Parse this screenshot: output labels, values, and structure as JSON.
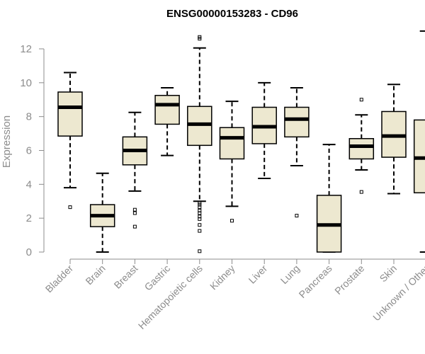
{
  "chart_data": {
    "type": "boxplot",
    "title": "ENSG00000153283 - CD96",
    "xlabel": "",
    "ylabel": "Expression",
    "ylim": [
      0,
      13
    ],
    "yticks": [
      0,
      2,
      4,
      6,
      8,
      10,
      12
    ],
    "grid": false,
    "colors": {
      "box_fill": "#ede8d0",
      "median": "#000000",
      "axis": "#8c8c8c"
    },
    "categories": [
      "Bladder",
      "Brain",
      "Breast",
      "Gastric",
      "Hematopoietic cells",
      "Kidney",
      "Liver",
      "Lung",
      "Pancreas",
      "Prostate",
      "Skin",
      "Unknown / Other"
    ],
    "boxes": [
      {
        "min": 3.8,
        "q1": 6.85,
        "median": 8.55,
        "q3": 9.45,
        "max": 10.6,
        "outliers": [
          2.65
        ]
      },
      {
        "min": 0.0,
        "q1": 1.5,
        "median": 2.15,
        "q3": 2.8,
        "max": 4.65,
        "outliers": []
      },
      {
        "min": 3.6,
        "q1": 5.15,
        "median": 6.0,
        "q3": 6.8,
        "max": 8.25,
        "outliers": [
          1.5,
          2.3,
          2.5
        ]
      },
      {
        "min": 5.7,
        "q1": 7.55,
        "median": 8.7,
        "q3": 9.25,
        "max": 9.7,
        "outliers": []
      },
      {
        "min": 3.0,
        "q1": 6.3,
        "median": 7.55,
        "q3": 8.6,
        "max": 12.05,
        "outliers": [
          12.7,
          12.6,
          2.9,
          2.8,
          2.65,
          2.45,
          2.3,
          2.1,
          1.95,
          1.6,
          1.25,
          0.05
        ]
      },
      {
        "min": 2.7,
        "q1": 5.5,
        "median": 6.75,
        "q3": 7.35,
        "max": 8.9,
        "outliers": [
          1.85
        ]
      },
      {
        "min": 4.35,
        "q1": 6.4,
        "median": 7.4,
        "q3": 8.55,
        "max": 10.0,
        "outliers": []
      },
      {
        "min": 5.1,
        "q1": 6.8,
        "median": 7.85,
        "q3": 8.55,
        "max": 9.7,
        "outliers": [
          2.15
        ]
      },
      {
        "min": 0.0,
        "q1": 0.0,
        "median": 1.6,
        "q3": 3.35,
        "max": 6.35,
        "outliers": []
      },
      {
        "min": 4.85,
        "q1": 5.5,
        "median": 6.25,
        "q3": 6.7,
        "max": 8.1,
        "outliers": [
          9.0,
          3.55
        ]
      },
      {
        "min": 3.45,
        "q1": 5.6,
        "median": 6.85,
        "q3": 8.3,
        "max": 9.9,
        "outliers": []
      },
      {
        "min": 0.0,
        "q1": 3.5,
        "median": 5.55,
        "q3": 7.8,
        "max": 13.05,
        "outliers": []
      }
    ]
  }
}
